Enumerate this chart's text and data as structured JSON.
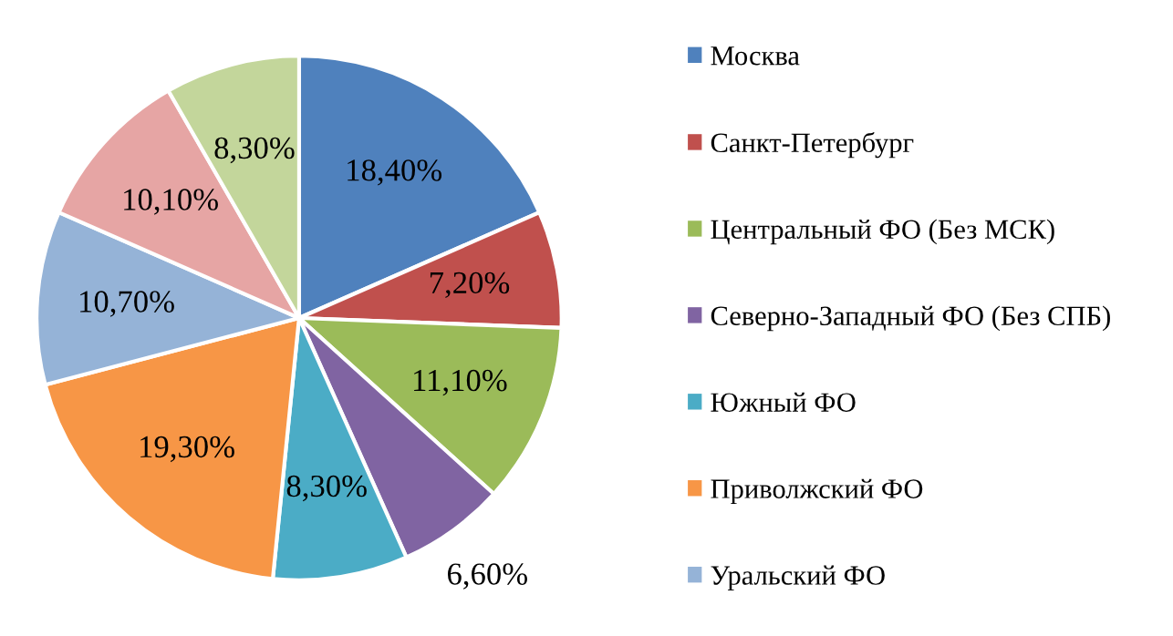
{
  "chart_data": {
    "type": "pie",
    "categories": [
      "Москва",
      "Санкт-Петербург",
      "Центральный ФО (Без МСК)",
      "Северно-Западный ФО (Без СПБ)",
      "Южный ФО",
      "Приволжский ФО",
      "Уральский ФО",
      null,
      null
    ],
    "values": [
      18.4,
      7.2,
      11.1,
      6.6,
      8.3,
      19.3,
      10.7,
      10.1,
      8.3
    ],
    "value_labels": [
      "18,40%",
      "7,20%",
      "11,10%",
      "6,60%",
      "8,30%",
      "19,30%",
      "10,70%",
      "10,10%",
      "8,30%"
    ],
    "colors": [
      "#4f81bd",
      "#c0504d",
      "#9bbb59",
      "#8064a2",
      "#4bacc6",
      "#f79646",
      "#95b3d7",
      "#e6a5a4",
      "#c3d69b"
    ],
    "legend": "right"
  }
}
